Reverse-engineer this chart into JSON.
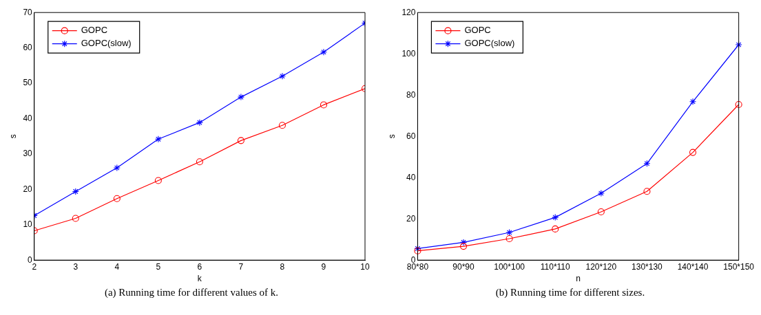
{
  "chart_data": [
    {
      "type": "line",
      "title": "(a) Running time for different values of k.",
      "xlabel": "k",
      "ylabel": "s",
      "x": [
        2,
        3,
        4,
        5,
        6,
        7,
        8,
        9,
        10
      ],
      "xlim": [
        2,
        10
      ],
      "xticks": [
        2,
        3,
        4,
        5,
        6,
        7,
        8,
        9,
        10
      ],
      "ylim": [
        0,
        70
      ],
      "yticks": [
        0,
        10,
        20,
        30,
        40,
        50,
        60,
        70
      ],
      "grid": false,
      "legend": "top left",
      "series": [
        {
          "name": "GOPC",
          "color": "#ff0000",
          "marker": "circle",
          "values": [
            8.3,
            11.8,
            17.4,
            22.5,
            27.8,
            33.8,
            38.1,
            43.9,
            48.5
          ]
        },
        {
          "name": "GOPC(slow)",
          "color": "#0000ff",
          "marker": "cross",
          "values": [
            12.6,
            19.4,
            26.1,
            34.2,
            38.9,
            46.1,
            52.0,
            58.8,
            67.0
          ]
        }
      ]
    },
    {
      "type": "line",
      "title": "(b) Running time for different sizes.",
      "xlabel": "n",
      "ylabel": "s",
      "categories": [
        "80*80",
        "90*90",
        "100*100",
        "110*110",
        "120*120",
        "130*130",
        "140*140",
        "150*150"
      ],
      "ylim": [
        0,
        120
      ],
      "yticks": [
        0,
        20,
        40,
        60,
        80,
        100,
        120
      ],
      "grid": false,
      "legend": "top left",
      "series": [
        {
          "name": "GOPC",
          "color": "#ff0000",
          "marker": "circle",
          "values": [
            4.5,
            6.7,
            10.4,
            15.1,
            23.4,
            33.3,
            52.2,
            75.4
          ]
        },
        {
          "name": "GOPC(slow)",
          "color": "#0000ff",
          "marker": "cross",
          "values": [
            5.6,
            8.6,
            13.4,
            20.7,
            32.4,
            46.8,
            76.8,
            104.4
          ]
        }
      ]
    }
  ]
}
